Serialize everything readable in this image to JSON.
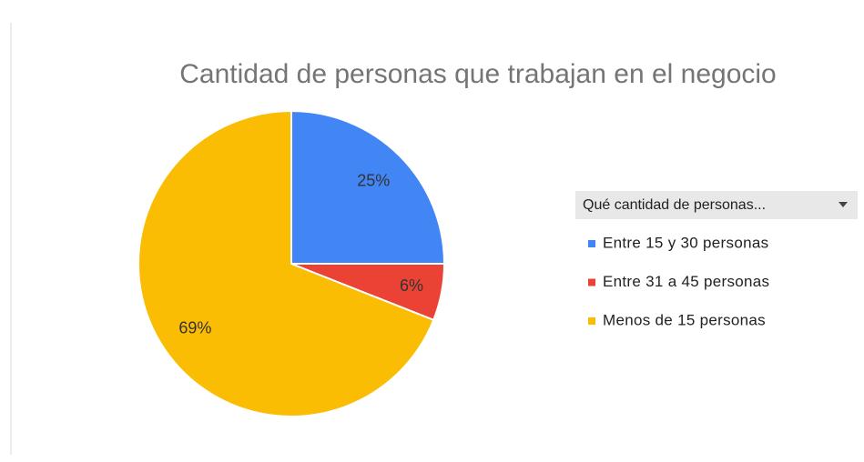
{
  "chart_data": {
    "type": "pie",
    "title": "Cantidad de personas que trabajan en el negocio",
    "legend_title": "Qué cantidad de personas...",
    "categories": [
      "Entre 15 y 30 personas",
      "Entre 31 a 45 personas",
      "Menos de 15 personas"
    ],
    "values": [
      25,
      6,
      69
    ],
    "value_labels": [
      "25%",
      "6%",
      "69%"
    ],
    "colors": [
      "#4285f4",
      "#ea4335",
      "#fbbc04"
    ],
    "legend": "right"
  }
}
